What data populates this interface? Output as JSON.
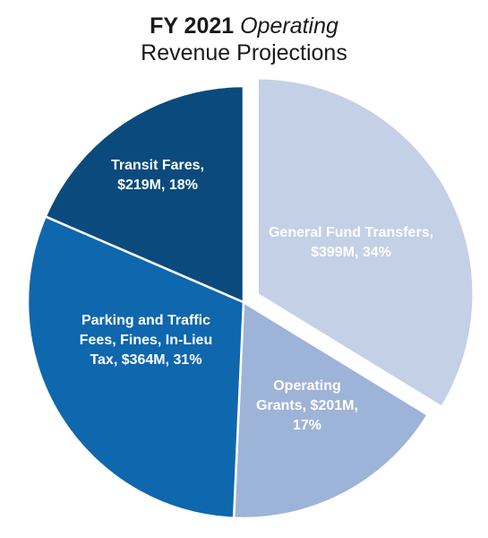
{
  "chart_data": {
    "type": "pie",
    "title_bold": "FY 2021",
    "title_italic": "Operating",
    "subtitle": "Revenue Projections",
    "slices": [
      {
        "label_lines": [
          "General Fund Transfers,",
          "$399M, 34%"
        ],
        "value": 399,
        "percent": 34,
        "color": "#c4d0e5",
        "exploded": true
      },
      {
        "label_lines": [
          "Operating",
          "Grants,  $201M,",
          "17%"
        ],
        "value": 201,
        "percent": 17,
        "color": "#9eb3d8",
        "exploded": false
      },
      {
        "label_lines": [
          "Parking and Traffic",
          "Fees, Fines, In-Lieu",
          "Tax,  $364M, 31%"
        ],
        "value": 364,
        "percent": 31,
        "color": "#0f67ad",
        "exploded": false
      },
      {
        "label_lines": [
          "Transit Fares,",
          "$219M, 18%"
        ],
        "value": 219,
        "percent": 18,
        "color": "#0b4a7d",
        "exploded": false
      }
    ]
  }
}
